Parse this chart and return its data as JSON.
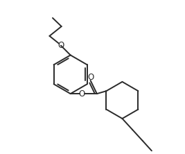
{
  "bg_color": "#ffffff",
  "line_color": "#2a2a2a",
  "line_width": 1.4,
  "figsize": [
    2.67,
    2.22
  ],
  "dpi": 100,
  "xlim": [
    0,
    10
  ],
  "ylim": [
    0,
    8.32
  ]
}
